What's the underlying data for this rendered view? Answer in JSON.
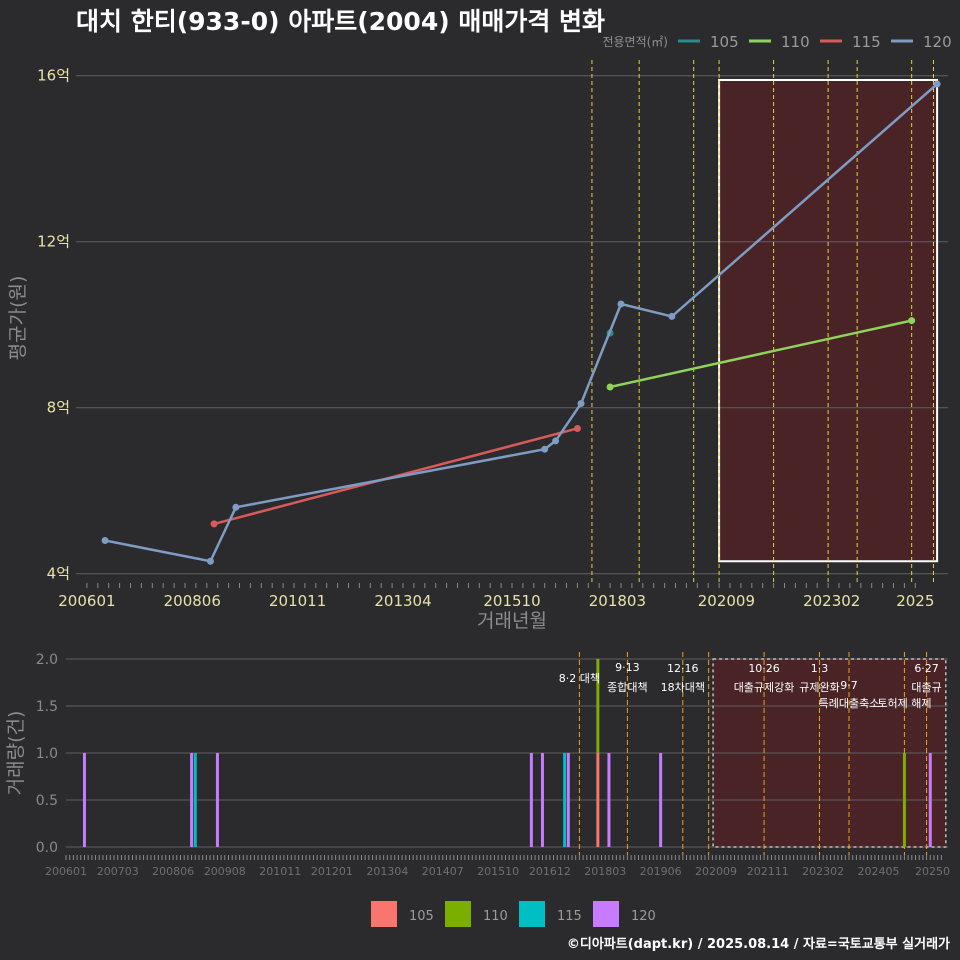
{
  "title": "대치 한티(933-0) 아파트(2004) 매매가격 변화",
  "footer": "©디아파트(dapt.kr) / 2025.08.14 / 자료=국토교통부 실거래가",
  "colors": {
    "background": "#2b2b2d",
    "series_top": {
      "105": "#2b8a8a",
      "110": "#8fd45a",
      "115": "#d85a5a",
      "120": "#7e9cc4"
    },
    "series_bottom": {
      "105": "#f8766d",
      "110": "#7cae00",
      "115": "#00bfc4",
      "120": "#c77cff"
    },
    "policy_line": "#e6d23a",
    "shade": "#4a2326"
  },
  "chart_data": [
    {
      "type": "line",
      "title": "대치 한티(933-0) 아파트(2004) 매매가격 변화",
      "xlabel": "거래년월",
      "ylabel": "평균가(원)",
      "legend_title": "전용면적(㎡)",
      "legend_position": "top-right",
      "x_ticks": [
        "200601",
        "200806",
        "201011",
        "201304",
        "201510",
        "201803",
        "202009",
        "202302",
        "2025"
      ],
      "y_ticks": [
        "4억",
        "8억",
        "12억",
        "16억"
      ],
      "ylim_eok": [
        3.8,
        16.5
      ],
      "grid": true,
      "series": [
        {
          "name": "105",
          "points": [
            [
              "2018-01",
              9.8
            ]
          ]
        },
        {
          "name": "110",
          "points": [
            [
              "2018-01",
              8.5
            ],
            [
              "2024-12",
              10.1
            ]
          ]
        },
        {
          "name": "115",
          "points": [
            [
              "2008-12",
              5.2
            ],
            [
              "2017-04",
              7.5
            ]
          ]
        },
        {
          "name": "120",
          "points": [
            [
              "2006-06",
              4.8
            ],
            [
              "2008-11",
              4.3
            ],
            [
              "2009-06",
              5.6
            ],
            [
              "2016-07",
              7.0
            ],
            [
              "2016-10",
              7.2
            ],
            [
              "2017-05",
              8.1
            ],
            [
              "2018-04",
              10.5
            ],
            [
              "2019-06",
              10.2
            ],
            [
              "2025-07",
              15.8
            ]
          ]
        }
      ],
      "policy_lines": [
        "2017-08",
        "2018-09",
        "2019-12",
        "2020-07",
        "2021-10",
        "2023-01",
        "2023-09",
        "2024-12",
        "2025-06"
      ],
      "highlight_range": [
        "2020-07",
        "2025-07"
      ]
    },
    {
      "type": "bar",
      "ylabel": "거래량(건)",
      "x_ticks": [
        "200601",
        "200703",
        "200806",
        "200908",
        "201011",
        "201201",
        "201304",
        "201407",
        "201510",
        "201612",
        "201803",
        "201906",
        "202009",
        "202111",
        "202302",
        "202405",
        "20250"
      ],
      "y_ticks": [
        "0.0",
        "0.5",
        "1.0",
        "1.5",
        "2.0"
      ],
      "ylim": [
        0,
        2
      ],
      "legend": [
        "105",
        "110",
        "115",
        "120"
      ],
      "legend_position": "bottom",
      "bars": [
        {
          "x": "2006-06",
          "series": "120",
          "value": 1
        },
        {
          "x": "2008-11",
          "series": "120",
          "value": 1
        },
        {
          "x": "2008-12",
          "series": "115",
          "value": 1
        },
        {
          "x": "2009-06",
          "series": "120",
          "value": 1
        },
        {
          "x": "2016-07",
          "series": "120",
          "value": 1
        },
        {
          "x": "2016-10",
          "series": "120",
          "value": 1
        },
        {
          "x": "2017-04",
          "series": "115",
          "value": 1
        },
        {
          "x": "2017-05",
          "series": "120",
          "value": 1
        },
        {
          "x": "2018-01",
          "series": "105",
          "value": 1
        },
        {
          "x": "2018-01",
          "series": "110",
          "value": 1
        },
        {
          "x": "2018-04",
          "series": "120",
          "value": 1
        },
        {
          "x": "2019-06",
          "series": "120",
          "value": 1
        },
        {
          "x": "2024-12",
          "series": "110",
          "value": 1
        },
        {
          "x": "2025-07",
          "series": "120",
          "value": 1
        }
      ],
      "annotations": [
        {
          "x": "2017-08",
          "line1": "8·2 대책",
          "line2": ""
        },
        {
          "x": "2018-09",
          "line1": "9·13",
          "line2": "종합대책"
        },
        {
          "x": "2019-12",
          "line1": "12·16",
          "line2": "18차대책"
        },
        {
          "x": "2021-10",
          "line1": "10·26",
          "line2": "대출규제강화"
        },
        {
          "x": "2023-01",
          "line1": "1·3",
          "line2": "규제완화"
        },
        {
          "x": "2023-09",
          "line1": "9·7",
          "line2": "특례대출축소"
        },
        {
          "x": "2024-12",
          "line1": "",
          "line2": "토허제 해제"
        },
        {
          "x": "2025-06",
          "line1": "6·27",
          "line2": "대출규"
        }
      ]
    }
  ]
}
